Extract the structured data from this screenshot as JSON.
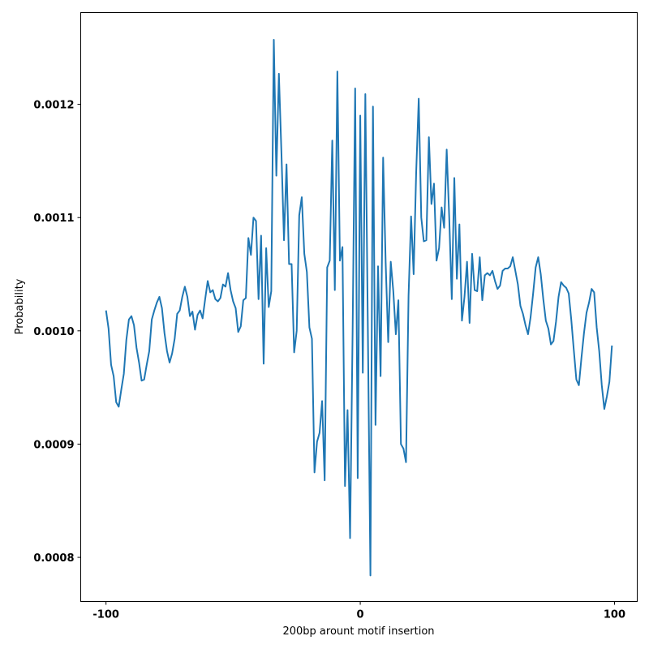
{
  "chart_data": {
    "type": "line",
    "x_label": "200bp arount motif insertion",
    "y_label": "Probability",
    "color": "#1f77b4",
    "xlim": [
      -109.95,
      108.95
    ],
    "ylim": [
      0.000761,
      0.001281
    ],
    "xticks": [
      -100,
      0,
      100
    ],
    "yticks": [
      0.0008,
      0.0009,
      {
        "value": 0.001,
        "label": "0.0010"
      },
      0.0011,
      0.0012
    ],
    "x": [
      -100,
      -99,
      -98,
      -97,
      -96,
      -95,
      -94,
      -93,
      -92,
      -91,
      -90,
      -89,
      -88,
      -87,
      -86,
      -85,
      -84,
      -83,
      -82,
      -81,
      -80,
      -79,
      -78,
      -77,
      -76,
      -75,
      -74,
      -73,
      -72,
      -71,
      -70,
      -69,
      -68,
      -67,
      -66,
      -65,
      -64,
      -63,
      -62,
      -61,
      -60,
      -59,
      -58,
      -57,
      -56,
      -55,
      -54,
      -53,
      -52,
      -51,
      -50,
      -49,
      -48,
      -47,
      -46,
      -45,
      -44,
      -43,
      -42,
      -41,
      -40,
      -39,
      -38,
      -37,
      -36,
      -35,
      -34,
      -33,
      -32,
      -31,
      -30,
      -29,
      -28,
      -27,
      -26,
      -25,
      -24,
      -23,
      -22,
      -21,
      -20,
      -19,
      -18,
      -17,
      -16,
      -15,
      -14,
      -13,
      -12,
      -11,
      -10,
      -9,
      -8,
      -7,
      -6,
      -5,
      -4,
      -3,
      -2,
      -1,
      0,
      1,
      2,
      3,
      4,
      5,
      6,
      7,
      8,
      9,
      10,
      11,
      12,
      13,
      14,
      15,
      16,
      17,
      18,
      19,
      20,
      21,
      22,
      23,
      24,
      25,
      26,
      27,
      28,
      29,
      30,
      31,
      32,
      33,
      34,
      35,
      36,
      37,
      38,
      39,
      40,
      41,
      42,
      43,
      44,
      45,
      46,
      47,
      48,
      49,
      50,
      51,
      52,
      53,
      54,
      55,
      56,
      57,
      58,
      59,
      60,
      61,
      62,
      63,
      64,
      65,
      66,
      67,
      68,
      69,
      70,
      71,
      72,
      73,
      74,
      75,
      76,
      77,
      78,
      79,
      80,
      81,
      82,
      83,
      84,
      85,
      86,
      87,
      88,
      89,
      90,
      91,
      92,
      93,
      94,
      95,
      96,
      97,
      98,
      99
    ],
    "values": [
      0.001018,
      0.001002,
      0.00097,
      0.00096,
      0.000937,
      0.000933,
      0.000948,
      0.000962,
      0.000992,
      0.00101,
      0.001013,
      0.001005,
      0.000985,
      0.000972,
      0.000956,
      0.000957,
      0.00097,
      0.000982,
      0.00101,
      0.001018,
      0.001025,
      0.00103,
      0.00102,
      0.000998,
      0.000982,
      0.000972,
      0.00098,
      0.000993,
      0.001015,
      0.001018,
      0.00103,
      0.001039,
      0.00103,
      0.001013,
      0.001017,
      0.001001,
      0.001014,
      0.001018,
      0.001011,
      0.001028,
      0.001044,
      0.001034,
      0.001036,
      0.001028,
      0.001026,
      0.001029,
      0.001041,
      0.001039,
      0.001051,
      0.001036,
      0.001026,
      0.00102,
      0.000999,
      0.001004,
      0.001027,
      0.001029,
      0.001082,
      0.001067,
      0.0011,
      0.001097,
      0.001028,
      0.001084,
      0.000971,
      0.001073,
      0.001021,
      0.001035,
      0.001257,
      0.001137,
      0.001227,
      0.001157,
      0.00108,
      0.001147,
      0.001059,
      0.001059,
      0.000981,
      0.001,
      0.001102,
      0.001118,
      0.001068,
      0.001052,
      0.001003,
      0.000993,
      0.000875,
      0.000902,
      0.00091,
      0.000938,
      0.000868,
      0.001056,
      0.001062,
      0.001168,
      0.001036,
      0.001229,
      0.001062,
      0.001074,
      0.000863,
      0.00093,
      0.000817,
      0.001,
      0.001214,
      0.00087,
      0.00119,
      0.000963,
      0.001209,
      0.001,
      0.000784,
      0.001198,
      0.000917,
      0.001057,
      0.00096,
      0.001153,
      0.00106,
      0.00099,
      0.001061,
      0.001035,
      0.000997,
      0.001027,
      0.0009,
      0.000896,
      0.000884,
      0.001031,
      0.001101,
      0.00105,
      0.00114,
      0.001205,
      0.0011,
      0.001079,
      0.00108,
      0.001171,
      0.001112,
      0.00113,
      0.001062,
      0.001073,
      0.001109,
      0.001091,
      0.00116,
      0.0011,
      0.001028,
      0.001135,
      0.001046,
      0.001094,
      0.001009,
      0.00103,
      0.001061,
      0.001007,
      0.001068,
      0.001036,
      0.001035,
      0.001065,
      0.001027,
      0.001049,
      0.001051,
      0.001049,
      0.001053,
      0.001044,
      0.001037,
      0.00104,
      0.001053,
      0.001055,
      0.001055,
      0.001057,
      0.001065,
      0.001053,
      0.001041,
      0.001022,
      0.001015,
      0.001005,
      0.000997,
      0.001012,
      0.001033,
      0.001056,
      0.001065,
      0.00105,
      0.001028,
      0.001009,
      0.001002,
      0.000988,
      0.000991,
      0.001008,
      0.00103,
      0.001043,
      0.00104,
      0.001038,
      0.001033,
      0.00101,
      0.000983,
      0.000957,
      0.000952,
      0.000976,
      0.000998,
      0.001016,
      0.001025,
      0.001037,
      0.001034,
      0.001003,
      0.000982,
      0.000952,
      0.000931,
      0.000942,
      0.000955,
      0.000987
    ]
  }
}
